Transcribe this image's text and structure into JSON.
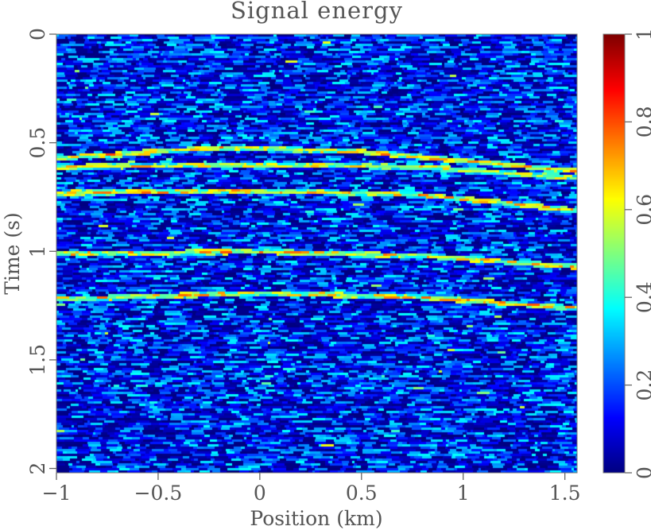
{
  "chart_data": {
    "type": "heatmap",
    "title": "Signal energy",
    "xlabel": "Position (km)",
    "ylabel": "Time (s)",
    "xlim": [
      -1,
      1.56
    ],
    "ylim": [
      0,
      2.02
    ],
    "xticks": [
      -1,
      -0.5,
      0,
      0.5,
      1,
      1.5
    ],
    "xtick_labels": [
      "−1",
      "−0.5",
      "0",
      "0.5",
      "1",
      "1.5"
    ],
    "yticks": [
      0,
      0.5,
      1,
      1.5,
      2
    ],
    "ytick_labels": [
      "0",
      "0.5",
      "1",
      "1.5",
      "2"
    ],
    "colorbar": {
      "colormap": "jet",
      "range": [
        0,
        1
      ],
      "ticks": [
        0,
        0.2,
        0.4,
        0.6,
        0.8,
        1
      ],
      "tick_labels": [
        "0",
        "0.2",
        "0.4",
        "0.6",
        "0.8",
        "1"
      ]
    },
    "background_level": 0.15,
    "reflectors": [
      {
        "t_at_x": [
          [
            -1,
            0.57
          ],
          [
            -0.2,
            0.52
          ],
          [
            0.5,
            0.54
          ],
          [
            1.56,
            0.63
          ]
        ],
        "amplitude": 0.75
      },
      {
        "t_at_x": [
          [
            -1,
            0.61
          ],
          [
            0,
            0.6
          ],
          [
            0.8,
            0.61
          ],
          [
            1.56,
            0.66
          ]
        ],
        "amplitude": 0.7
      },
      {
        "t_at_x": [
          [
            -1,
            0.73
          ],
          [
            0,
            0.72
          ],
          [
            0.8,
            0.74
          ],
          [
            1.56,
            0.81
          ]
        ],
        "amplitude": 0.75
      },
      {
        "t_at_x": [
          [
            -1,
            1.01
          ],
          [
            0,
            1.0
          ],
          [
            0.8,
            1.02
          ],
          [
            1.56,
            1.07
          ]
        ],
        "amplitude": 0.75
      },
      {
        "t_at_x": [
          [
            -1,
            1.22
          ],
          [
            0,
            1.19
          ],
          [
            0.8,
            1.21
          ],
          [
            1.56,
            1.26
          ]
        ],
        "amplitude": 0.75
      }
    ]
  }
}
